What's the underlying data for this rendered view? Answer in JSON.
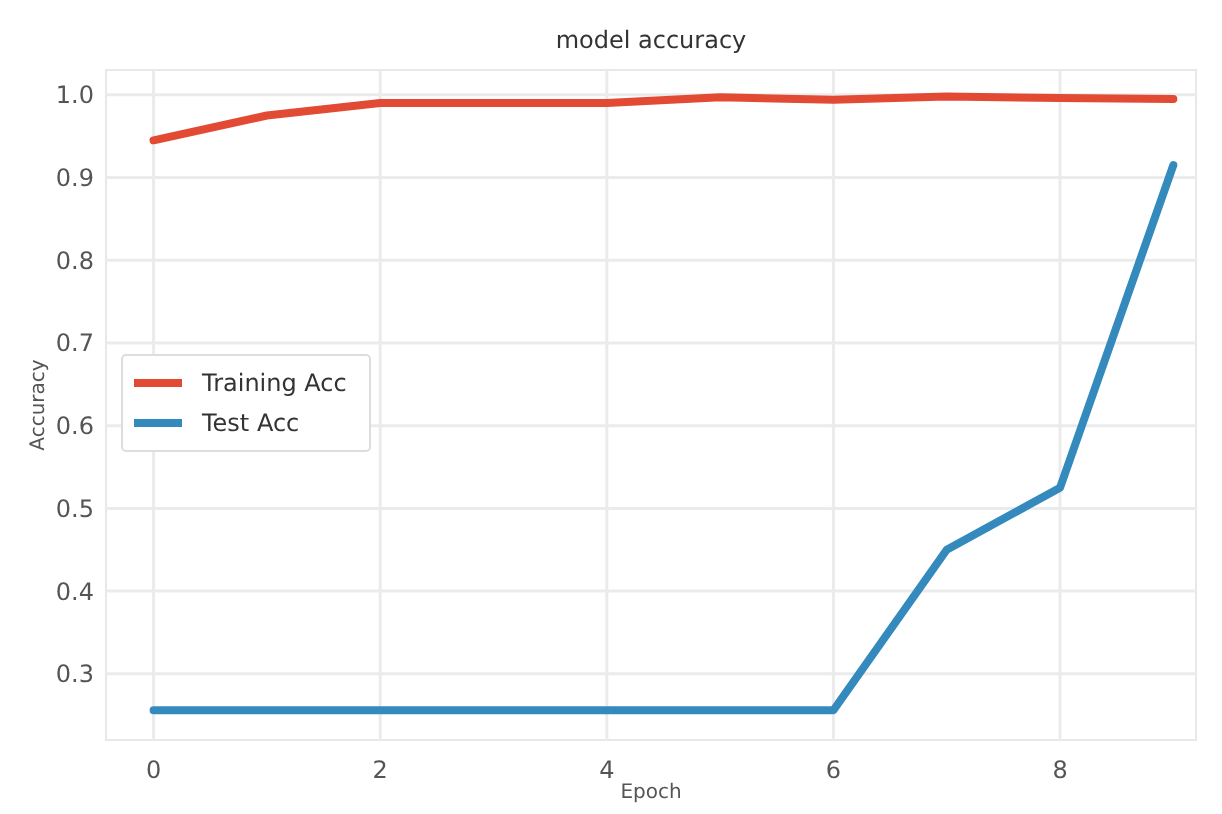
{
  "chart_data": {
    "type": "line",
    "title": "model accuracy",
    "xlabel": "Epoch",
    "ylabel": "Accuracy",
    "x": [
      0,
      1,
      2,
      3,
      4,
      5,
      6,
      7,
      8,
      9
    ],
    "series": [
      {
        "name": "Training Acc",
        "color": "#e24a33",
        "values": [
          0.945,
          0.975,
          0.99,
          0.99,
          0.99,
          0.997,
          0.994,
          0.998,
          0.996,
          0.995
        ]
      },
      {
        "name": "Test Acc",
        "color": "#348abd",
        "values": [
          0.256,
          0.256,
          0.256,
          0.256,
          0.256,
          0.256,
          0.256,
          0.45,
          0.525,
          0.915
        ]
      }
    ],
    "xlim": [
      -0.42,
      9.2
    ],
    "xticks": [
      0,
      2,
      4,
      6,
      8
    ],
    "ylim": [
      0.22,
      1.03
    ],
    "yticks": [
      {
        "value": 0.3,
        "label": "0.3"
      },
      {
        "value": 0.4,
        "label": "0.4"
      },
      {
        "value": 0.5,
        "label": "0.5"
      },
      {
        "value": 0.6,
        "label": "0.6"
      },
      {
        "value": 0.7,
        "label": "0.7"
      },
      {
        "value": 0.8,
        "label": "0.8"
      },
      {
        "value": 0.9,
        "label": "0.9"
      },
      {
        "value": 1.0,
        "label": "1.0"
      }
    ],
    "grid": true,
    "legend": "center left",
    "marker": "none",
    "line_style": "solid"
  }
}
